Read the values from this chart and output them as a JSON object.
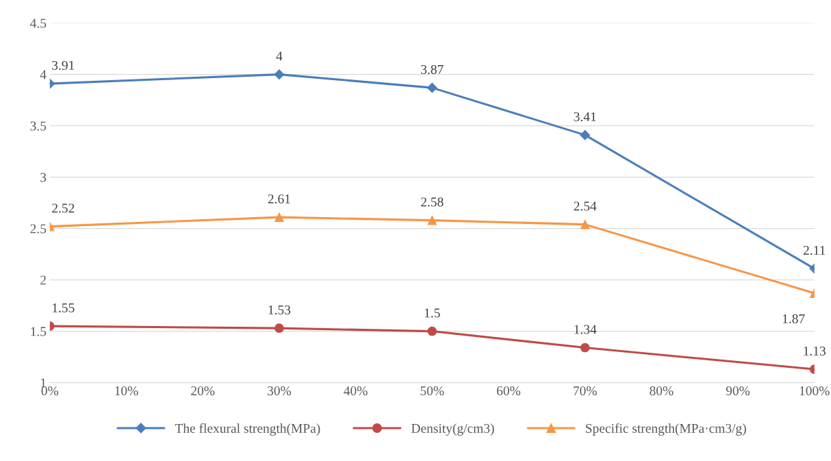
{
  "chart_data": {
    "type": "line",
    "x": [
      0,
      30,
      50,
      70,
      100
    ],
    "series": [
      {
        "name": "The flexural strength(MPa)",
        "color": "#4a7ebb",
        "marker": "diamond",
        "values": [
          3.91,
          4,
          3.87,
          3.41,
          2.11
        ]
      },
      {
        "name": "Density(g/cm3)",
        "color": "#be4b48",
        "marker": "circle",
        "values": [
          1.55,
          1.53,
          1.5,
          1.34,
          1.13
        ]
      },
      {
        "name": "Specific strength(MPa·cm3/g)",
        "color": "#f79646",
        "marker": "triangle",
        "values": [
          2.52,
          2.61,
          2.58,
          2.54,
          1.87
        ]
      }
    ],
    "xlim": [
      0,
      100
    ],
    "xticks": [
      {
        "value": 0,
        "label": "0%"
      },
      {
        "value": 10,
        "label": "10%"
      },
      {
        "value": 20,
        "label": "20%"
      },
      {
        "value": 30,
        "label": "30%"
      },
      {
        "value": 40,
        "label": "40%"
      },
      {
        "value": 50,
        "label": "50%"
      },
      {
        "value": 60,
        "label": "60%"
      },
      {
        "value": 70,
        "label": "70%"
      },
      {
        "value": 80,
        "label": "80%"
      },
      {
        "value": 90,
        "label": "90%"
      },
      {
        "value": 100,
        "label": "100%"
      }
    ],
    "ylim": [
      1,
      4.5
    ],
    "yticks": [
      1,
      1.5,
      2,
      2.5,
      3,
      3.5,
      4,
      4.5
    ],
    "grid": "y",
    "legend": "bottom",
    "data_labels": true,
    "line_style": "solid"
  }
}
